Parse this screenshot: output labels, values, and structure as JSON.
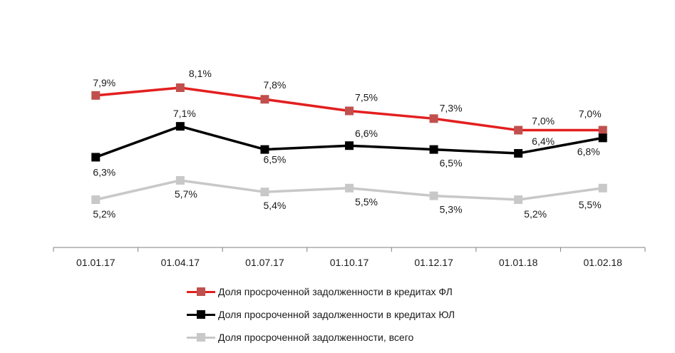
{
  "chart_data": {
    "type": "line",
    "categories": [
      "01.01.17",
      "01.04.17",
      "01.07.17",
      "01.10.17",
      "01.12.17",
      "01.01.18",
      "01.02.18"
    ],
    "series": [
      {
        "name": "Доля просроченной задолженности в кредитах ФЛ",
        "color": "#e31f1f",
        "marker_color": "#c0504d",
        "values": [
          7.9,
          8.1,
          7.8,
          7.5,
          7.3,
          7.0,
          7.0
        ],
        "labels": [
          "7,9%",
          "8,1%",
          "7,8%",
          "7,5%",
          "7,3%",
          "7,0%",
          "7,0%"
        ]
      },
      {
        "name": "Доля просроченной задолженности в кредитах ЮЛ",
        "color": "#000000",
        "marker_color": "#000000",
        "values": [
          6.3,
          7.1,
          6.5,
          6.6,
          6.5,
          6.4,
          6.8
        ],
        "labels": [
          "6,3%",
          "7,1%",
          "6,5%",
          "6,6%",
          "6,5%",
          "6,4%",
          "6,8%"
        ]
      },
      {
        "name": "Доля просроченной задолженности, всего",
        "color": "#c8c8c8",
        "marker_color": "#c8c8c8",
        "values": [
          5.2,
          5.7,
          5.4,
          5.5,
          5.3,
          5.2,
          5.5
        ],
        "labels": [
          "5,2%",
          "5,7%",
          "5,4%",
          "5,5%",
          "5,3%",
          "5,2%",
          "5,5%"
        ]
      }
    ],
    "legend_position": "bottom",
    "grid": false
  }
}
